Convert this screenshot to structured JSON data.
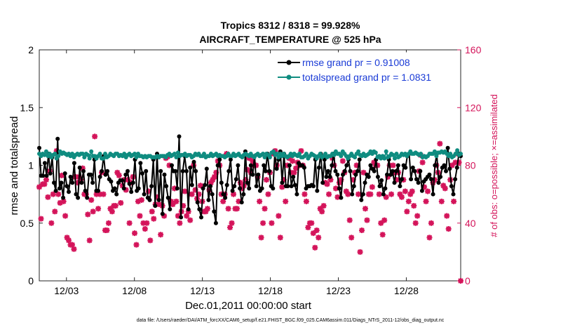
{
  "chart_data": {
    "type": "line",
    "title": "Tropics 8312 / 8318 = 99.928%",
    "subtitle": "AIRCRAFT_TEMPERATURE @ 525 hPa",
    "xlabel": "Dec.01,2011 00:00:00 start",
    "ylabel": "rmse and totalspread",
    "y2label": "# of obs: o=possible; ×=assimilated",
    "xlim": [
      1,
      32
    ],
    "ylim": [
      0,
      2
    ],
    "y2lim": [
      0,
      160
    ],
    "xticks": [
      3,
      8,
      13,
      18,
      23,
      28
    ],
    "xtick_labels": [
      "12/03",
      "12/08",
      "12/13",
      "12/18",
      "12/23",
      "12/28"
    ],
    "yticks": [
      0,
      0.5,
      1,
      1.5,
      2
    ],
    "ytick_labels": [
      "0",
      "0.5",
      "1",
      "1.5",
      "2"
    ],
    "y2ticks": [
      0,
      40,
      80,
      120,
      160
    ],
    "y2tick_labels": [
      "0",
      "40",
      "80",
      "120",
      "160"
    ],
    "footer": "data file: /Users/raeder/DAI/ATM_forcXX/CAM6_setup/f.e21.FHIST_BGC.f09_025.CAM6assim.011/Diags_NTrS_2011-12/obs_diag_output.nc",
    "series": [
      {
        "name": "rmse grand pr = 0.91008",
        "color": "#000000",
        "marker": "circle",
        "values": [
          1.15,
          0.91,
          0.91,
          1.02,
          0.91,
          1.1,
          0.93,
          1.07,
          0.85,
          0.78,
          1.23,
          0.8,
          0.85,
          0.72,
          0.93,
          0.82,
          0.77,
          0.9,
          0.85,
          1.02,
          0.75,
          0.72,
          0.98,
          0.85,
          0.95,
          0.78,
          0.72,
          0.92,
          0.92,
          0.85,
          1.05,
          0.78,
          0.78,
          0.9,
          0.95,
          1.08,
          0.92,
          0.95,
          0.88,
          0.86,
          0.78,
          0.8,
          0.75,
          0.85,
          0.87,
          0.87,
          0.8,
          0.92,
          0.95,
          0.84,
          0.77,
          0.85,
          1.05,
          0.78,
          0.8,
          1.02,
          0.93,
          0.75,
          0.95,
          0.72,
          0.7,
          0.82,
          1.05,
          0.65,
          1.1,
          0.7,
          0.95,
          0.58,
          0.92,
          0.82,
          0.72,
          0.62,
          1.0,
          0.95,
          0.95,
          0.8,
          1.25,
          0.55,
          0.95,
          1.08,
          0.95,
          0.62,
          0.98,
          0.83,
          1.03,
          0.95,
          0.68,
          0.62,
          0.55,
          0.8,
          0.83,
          0.97,
          0.7,
          0.82,
          0.75,
          0.6,
          0.5,
          1.0,
          1.05,
          0.85,
          0.75,
          0.72,
          0.83,
          0.95,
          1.05,
          0.78,
          0.82,
          0.88,
          1.0,
          0.8,
          0.68,
          0.75,
          1.12,
          0.85,
          0.8,
          1.0,
          0.92,
          1.08,
          0.82,
          0.92,
          0.78,
          0.8,
          1.0,
          0.95,
          1.1,
          0.95,
          0.82,
          0.8,
          1.1,
          0.97,
          1.05,
          1.12,
          0.85,
          1.1,
          0.82,
          0.82,
          1.0,
          0.82,
          0.9,
          0.83,
          0.75,
          1.02,
          1.0,
          1.0,
          0.98,
          0.8,
          0.82,
          0.82,
          0.83,
          0.82,
          1.05,
          0.78,
          0.98,
          1.1,
          0.85,
          1.05,
          0.9,
          0.95,
          0.9,
          1.0,
          1.1,
          0.95,
          0.92,
          0.8,
          0.72,
          0.92,
          0.95,
          1.0,
          1.05,
          0.95,
          0.75,
          0.82,
          0.92,
          0.95,
          1.05,
          0.7,
          0.75,
          0.85,
          0.92,
          0.9,
          1.0,
          0.97,
          0.95,
          1.05,
          0.9,
          0.82,
          0.87,
          0.75,
          0.8,
          0.92,
          1.05,
          0.92,
          0.95,
          0.85,
          0.95,
          1.0,
          0.82,
          0.88,
          1.0,
          0.98,
          1.08,
          1.1,
          0.88,
          0.98,
          0.95,
          0.88,
          0.85,
          0.95,
          0.78,
          0.86,
          0.88,
          0.9,
          0.92,
          0.88,
          0.75,
          1.0,
          1.1,
          0.85,
          0.9,
          0.98,
          1.0,
          0.95,
          1.15,
          0.97,
          0.82,
          0.75,
          0.88,
          0.98,
          1.1,
          1.08
        ]
      },
      {
        "name": "totalspread grand pr = 1.0831",
        "color": "#0f8c80",
        "marker": "circle",
        "values": [
          1.1,
          1.08,
          1.1,
          1.09,
          1.12,
          1.08,
          1.1,
          1.07,
          1.09,
          1.1,
          1.06,
          1.08,
          1.12,
          1.1,
          1.11,
          1.1,
          1.09,
          1.1,
          1.08,
          1.1,
          1.07,
          1.09,
          1.1,
          1.09,
          1.1,
          1.1,
          1.07,
          1.1,
          1.09,
          1.06,
          1.12,
          1.08,
          1.08,
          1.06,
          1.08,
          1.1,
          1.06,
          1.06,
          1.1,
          1.07,
          1.08,
          1.1,
          1.09,
          1.08,
          1.1,
          1.1,
          1.08,
          1.09,
          1.08,
          1.1,
          1.07,
          1.09,
          1.1,
          1.08,
          1.09,
          1.1,
          1.07,
          1.1,
          1.08,
          1.08,
          1.07,
          1.08,
          1.07,
          1.08,
          1.08,
          1.07,
          1.07,
          1.07,
          1.08,
          1.07,
          1.08,
          1.08,
          1.08,
          1.07,
          1.09,
          1.1,
          1.08,
          1.09,
          1.1,
          1.07,
          1.11,
          1.08,
          1.09,
          1.09,
          1.1,
          1.08,
          1.09,
          1.09,
          1.07,
          1.08,
          1.1,
          1.09,
          1.1,
          1.08,
          1.08,
          1.1,
          1.07,
          1.08,
          1.08,
          1.1,
          1.08,
          1.09,
          1.1,
          1.08,
          1.09,
          1.08,
          1.08,
          1.07,
          1.08,
          1.1,
          1.08,
          1.08,
          1.1,
          1.08,
          1.09,
          1.1,
          1.08,
          1.07,
          1.09,
          1.1,
          1.09,
          1.08,
          1.1,
          1.08,
          1.07,
          1.09,
          1.1,
          1.08,
          1.09,
          1.1,
          1.07,
          1.1,
          1.09,
          1.07,
          1.11,
          1.12,
          1.09,
          1.1,
          1.07,
          1.1,
          1.08,
          1.1,
          1.08,
          1.07,
          1.08,
          1.1,
          1.08,
          1.1,
          1.09,
          1.08,
          1.1,
          1.07,
          1.07,
          1.08,
          1.1,
          1.06,
          1.08,
          1.1,
          1.09,
          1.08,
          1.06,
          1.08,
          1.1,
          1.07,
          1.08,
          1.1,
          1.07,
          1.08,
          1.08,
          1.1,
          1.09,
          1.12,
          1.1,
          1.1,
          1.08,
          1.12,
          1.1,
          1.08,
          1.06,
          1.08,
          1.1,
          1.08,
          1.07,
          1.1,
          1.12,
          1.09,
          1.08,
          1.1,
          1.08,
          1.09,
          1.1,
          1.12,
          1.1,
          1.12,
          1.11,
          1.07,
          1.08,
          1.06,
          1.08,
          1.06,
          1.12,
          1.07,
          1.08,
          1.1,
          1.09,
          1.06,
          1.1,
          1.07,
          1.08,
          1.1,
          1.09,
          1.1,
          1.08,
          1.1,
          1.12,
          1.1,
          1.1,
          1.11,
          1.1,
          1.09,
          1.1,
          1.07,
          1.08,
          1.07,
          1.08,
          1.1,
          1.1,
          1.1,
          1.12,
          1.08,
          1.11,
          1.11,
          1.12,
          1.11,
          1.12,
          1.1,
          1.08,
          1.1,
          1.07,
          1.08,
          1.1,
          1.13,
          1.09,
          1.1
        ]
      },
      {
        "name": "obs assimilated",
        "axis": "right",
        "color": "#d4145a",
        "marker": "x",
        "values": [
          65,
          43,
          67,
          67,
          70,
          58,
          76,
          40,
          60,
          48,
          90,
          60,
          54,
          73,
          55,
          45,
          30,
          28,
          25,
          25,
          22,
          72,
          68,
          72,
          70,
          78,
          60,
          60,
          46,
          28,
          56,
          48,
          100,
          60,
          50,
          60,
          75,
          60,
          35,
          35,
          40,
          50,
          48,
          52,
          52,
          75,
          73,
          54,
          66,
          70,
          63,
          70,
          40,
          68,
          72,
          33,
          25,
          55,
          45,
          56,
          40,
          36,
          40,
          62,
          28,
          48,
          43,
          53,
          58,
          53,
          32,
          52,
          45,
          85,
          86,
          80,
          55,
          53,
          64,
          55,
          45,
          40,
          48,
          52,
          62,
          45,
          48,
          42,
          60,
          80,
          63,
          57,
          60,
          66,
          55,
          48,
          48,
          50,
          63,
          68,
          70,
          72,
          75,
          83,
          80,
          60,
          55,
          60,
          88,
          50,
          37,
          40,
          60,
          50,
          50,
          55,
          68,
          64,
          66,
          70,
          77,
          85,
          75,
          83,
          80,
          80,
          72,
          55,
          30,
          40,
          50,
          70,
          60,
          75,
          40,
          88,
          90,
          80,
          45,
          30,
          65,
          70,
          55,
          80,
          85,
          75,
          83,
          75,
          78,
          82,
          80,
          90,
          80,
          60,
          55,
          37,
          40,
          40,
          33,
          23,
          35,
          30,
          50,
          48,
          52,
          68,
          67,
          60,
          70,
          85,
          80,
          64,
          58,
          68,
          70,
          83,
          75,
          62,
          60,
          42,
          30,
          70,
          75,
          80,
          60,
          20,
          35,
          75,
          50,
          42,
          60,
          60,
          65,
          82,
          80,
          80,
          60,
          40,
          32,
          42,
          58,
          72,
          80,
          60,
          80,
          75,
          70,
          75,
          60,
          58,
          70,
          62,
          48,
          55,
          60,
          62,
          52,
          40,
          45,
          76,
          87,
          82,
          65,
          55,
          62,
          30,
          40,
          68,
          70,
          80,
          75,
          95,
          55,
          66,
          64,
          45,
          36,
          70,
          80,
          55,
          82,
          88,
          82,
          0
        ]
      }
    ]
  }
}
